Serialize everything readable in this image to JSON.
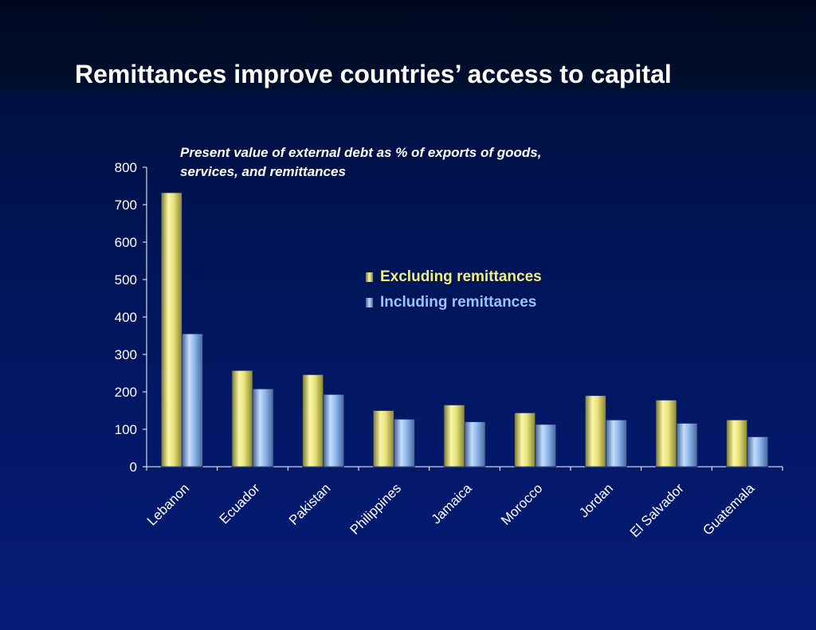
{
  "slide": {
    "title": "Remittances improve countries’ access to capital"
  },
  "chart_data": {
    "type": "bar",
    "subtitle": "Present value of external debt as % of exports of goods, services, and remittances",
    "categories": [
      "Lebanon",
      "Ecuador",
      "Pakistan",
      "Philippines",
      "Jamaica",
      "Morocco",
      "Jordan",
      "El Salvador",
      "Guatemala"
    ],
    "series": [
      {
        "name": "Excluding remittances",
        "values": [
          732,
          257,
          246,
          150,
          165,
          144,
          190,
          178,
          125
        ],
        "color": "#e8e67a",
        "label_color": "#f3ef7a"
      },
      {
        "name": "Including remittances",
        "values": [
          355,
          208,
          193,
          127,
          120,
          113,
          125,
          116,
          80
        ],
        "color": "#8fbaf0",
        "label_color": "#9cc2ff"
      }
    ],
    "ylim": [
      0,
      800
    ],
    "yticks": [
      0,
      100,
      200,
      300,
      400,
      500,
      600,
      700,
      800
    ],
    "xlabel": "",
    "ylabel": "",
    "legend_position": "center-right",
    "grid": false
  }
}
